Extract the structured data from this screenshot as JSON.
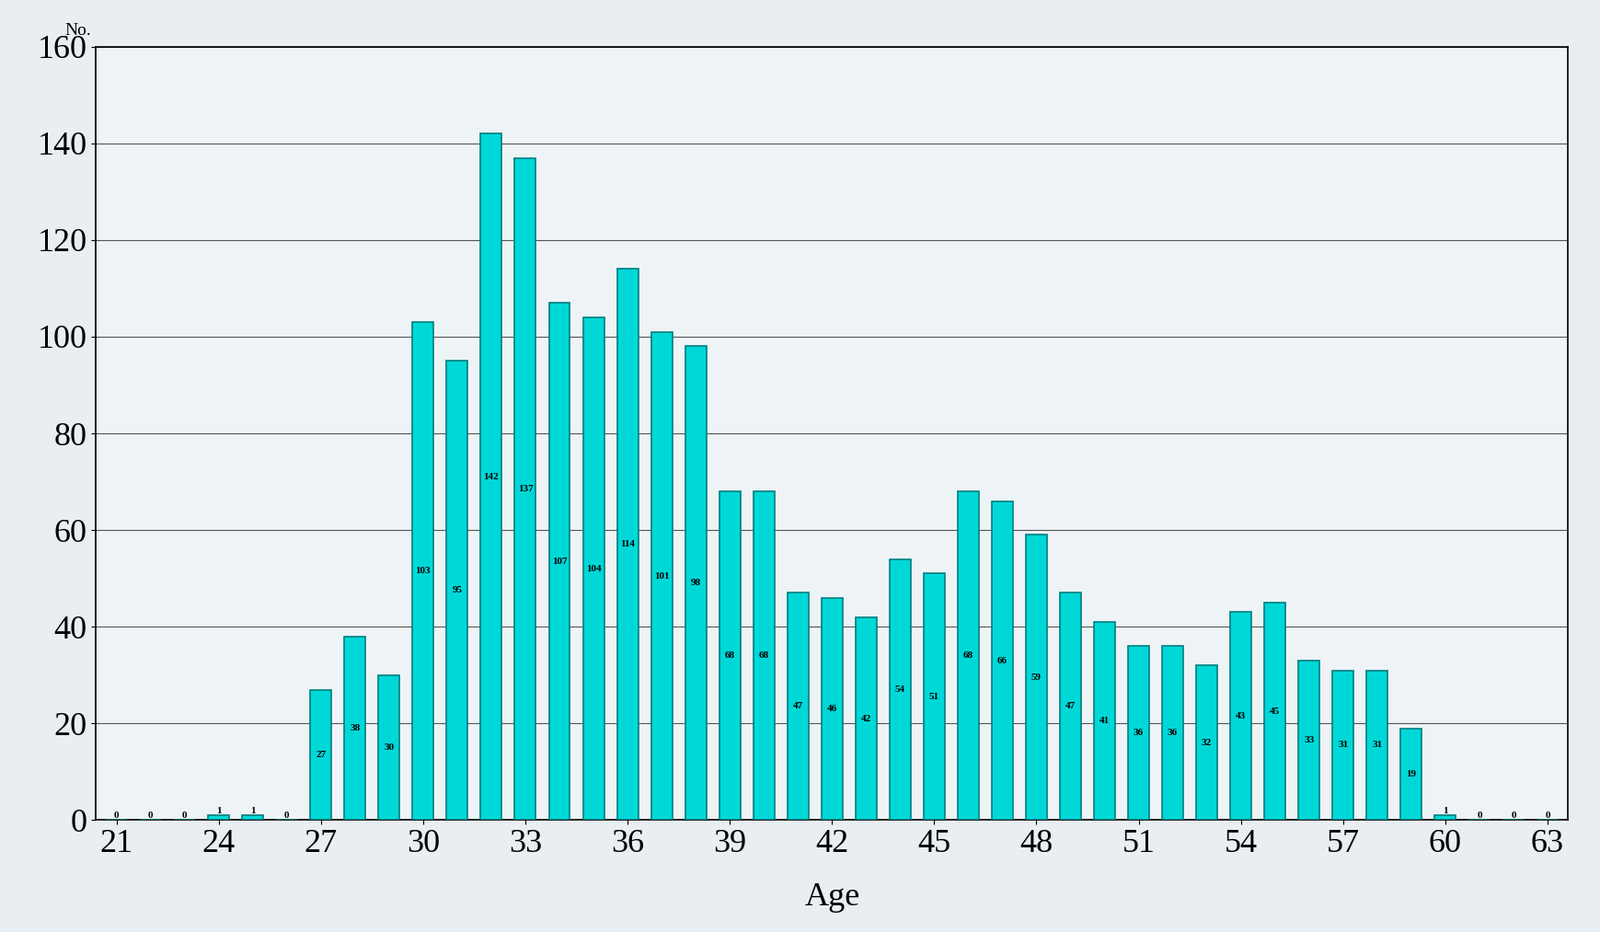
{
  "chart_data": {
    "type": "bar",
    "x_label": "Age",
    "y_label": "No.",
    "categories": [
      "21",
      null,
      null,
      "24",
      null,
      null,
      "27",
      null,
      null,
      "30",
      null,
      null,
      "33",
      null,
      null,
      "36",
      null,
      null,
      "39",
      null,
      null,
      "42",
      null,
      null,
      "45",
      null,
      null,
      "48",
      null,
      null,
      "51",
      null,
      null,
      "54",
      null,
      null,
      "57",
      null,
      null,
      "60",
      null,
      null,
      "63"
    ],
    "values": [
      0,
      0,
      0,
      1,
      1,
      0,
      27,
      38,
      30,
      103,
      95,
      142,
      137,
      107,
      104,
      114,
      101,
      98,
      68,
      68,
      47,
      46,
      42,
      54,
      51,
      68,
      66,
      59,
      47,
      41,
      36,
      36,
      32,
      43,
      45,
      33,
      31,
      31,
      19,
      1,
      0,
      0,
      0
    ],
    "color": "#00d8d8",
    "ylim": [
      0,
      160
    ],
    "yticks": [
      0,
      20,
      40,
      60,
      80,
      100,
      120,
      140,
      160
    ],
    "grid": true,
    "data_labels": true
  }
}
